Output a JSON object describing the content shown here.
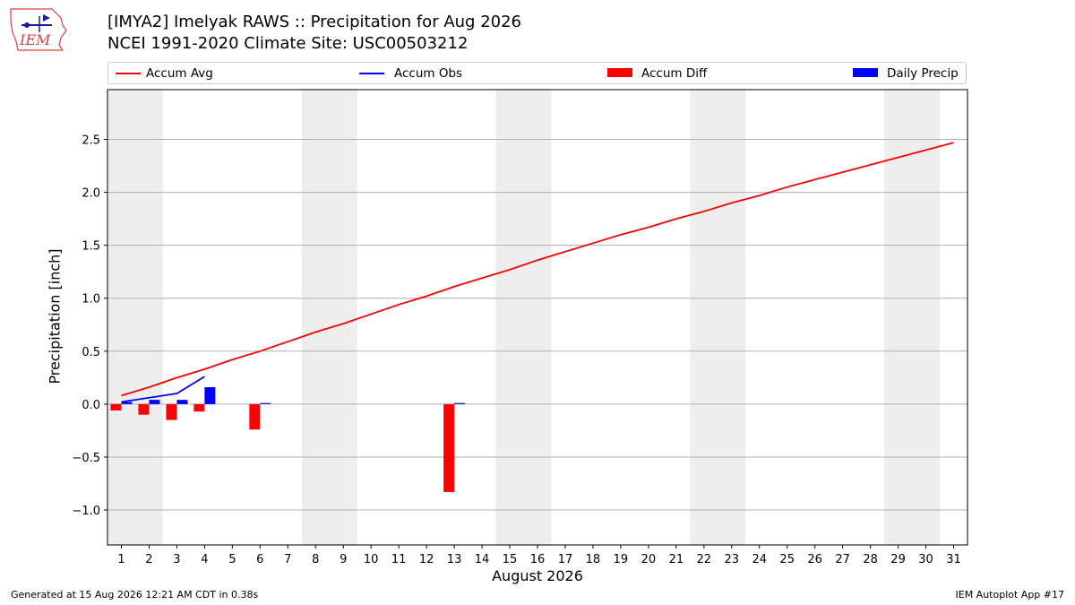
{
  "header": {
    "title_line1": "[IMYA2] Imelyak RAWS :: Precipitation for Aug 2026",
    "title_line2": "NCEI 1991-2020 Climate Site: USC00503212",
    "logo_text": "IEM"
  },
  "legend": [
    {
      "label": "Accum Avg",
      "kind": "line",
      "color": "#ff0000"
    },
    {
      "label": "Accum Obs",
      "kind": "line",
      "color": "#0000ff"
    },
    {
      "label": "Accum Diff",
      "kind": "box",
      "color": "#ff0000"
    },
    {
      "label": "Daily Precip",
      "kind": "box",
      "color": "#0000ff"
    }
  ],
  "footer": {
    "generated": "Generated at 15 Aug 2026 12:21 AM CDT in 0.38s",
    "app": "IEM Autoplot App #17"
  },
  "chart_data": {
    "type": "bar",
    "xlabel": "August 2026",
    "ylabel": "Precipitation [inch]",
    "xlim": [
      0.5,
      31.5
    ],
    "ylim": [
      -1.33,
      2.97
    ],
    "x_ticks": [
      1,
      2,
      3,
      4,
      5,
      6,
      7,
      8,
      9,
      10,
      11,
      12,
      13,
      14,
      15,
      16,
      17,
      18,
      19,
      20,
      21,
      22,
      23,
      24,
      25,
      26,
      27,
      28,
      29,
      30,
      31
    ],
    "y_ticks": [
      -1.0,
      -0.5,
      0.0,
      0.5,
      1.0,
      1.5,
      2.0,
      2.5
    ],
    "y_tick_labels": [
      "−1.0",
      "−0.5",
      "0.0",
      "0.5",
      "1.0",
      "1.5",
      "2.0",
      "2.5"
    ],
    "grid": true,
    "weekend_shading": [
      [
        0.5,
        2.5
      ],
      [
        7.5,
        9.5
      ],
      [
        14.5,
        16.5
      ],
      [
        21.5,
        23.5
      ],
      [
        28.5,
        30.5
      ]
    ],
    "shade_color": "#eeeeee",
    "series": [
      {
        "name": "Accum Avg",
        "kind": "line",
        "color": "#ff0000",
        "x": [
          1,
          2,
          3,
          4,
          5,
          6,
          7,
          8,
          9,
          10,
          11,
          12,
          13,
          14,
          15,
          16,
          17,
          18,
          19,
          20,
          21,
          22,
          23,
          24,
          25,
          26,
          27,
          28,
          29,
          30,
          31
        ],
        "values": [
          0.08,
          0.16,
          0.25,
          0.33,
          0.42,
          0.5,
          0.59,
          0.68,
          0.76,
          0.85,
          0.94,
          1.02,
          1.11,
          1.19,
          1.27,
          1.36,
          1.44,
          1.52,
          1.6,
          1.67,
          1.75,
          1.82,
          1.9,
          1.97,
          2.05,
          2.12,
          2.19,
          2.26,
          2.33,
          2.4,
          2.47
        ]
      },
      {
        "name": "Accum Obs",
        "kind": "line",
        "color": "#0000ff",
        "x": [
          1,
          2,
          3,
          4
        ],
        "values": [
          0.02,
          0.06,
          0.1,
          0.26
        ]
      },
      {
        "name": "Accum Diff",
        "kind": "bar",
        "color": "#ff0000",
        "x": [
          1,
          2,
          3,
          4,
          6,
          13
        ],
        "values": [
          -0.06,
          -0.1,
          -0.15,
          -0.07,
          -0.24,
          -0.83
        ]
      },
      {
        "name": "Daily Precip",
        "kind": "bar",
        "color": "#0000ff",
        "x": [
          1,
          2,
          3,
          4,
          6,
          13
        ],
        "values": [
          0.02,
          0.04,
          0.04,
          0.16,
          0.01,
          0.01
        ]
      }
    ]
  }
}
